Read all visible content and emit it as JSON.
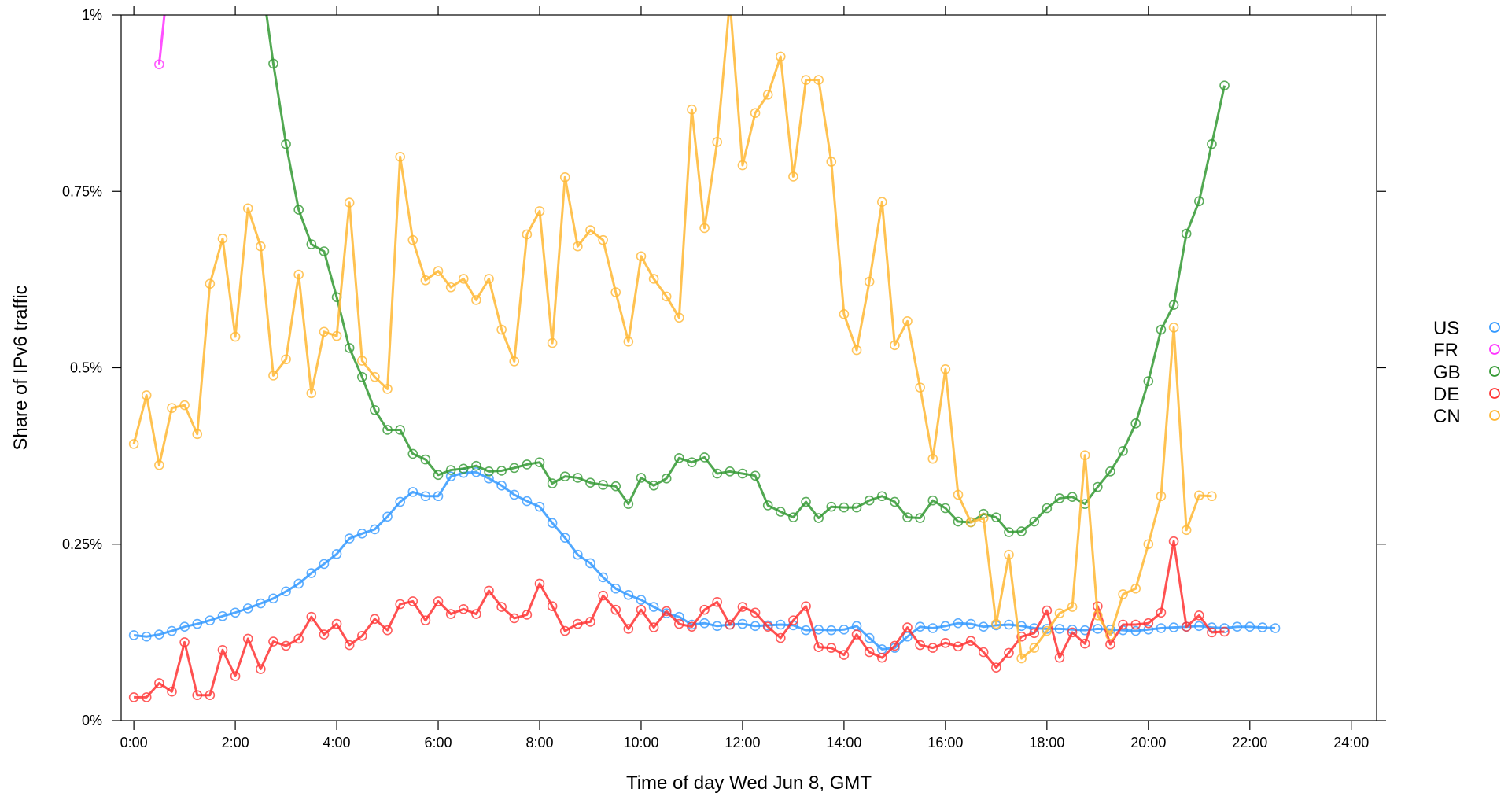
{
  "chart_data": {
    "type": "line",
    "title": "",
    "xlabel": "Time of day Wed Jun 8, GMT",
    "ylabel": "Share of IPv6 traffic",
    "xlim": [
      -0.25,
      24.5
    ],
    "ylim": [
      0,
      1
    ],
    "x_ticks": [
      0,
      2,
      4,
      6,
      8,
      10,
      12,
      14,
      16,
      18,
      20,
      22,
      24
    ],
    "x_tick_labels": [
      "0:00",
      "2:00",
      "4:00",
      "6:00",
      "8:00",
      "10:00",
      "12:00",
      "14:00",
      "16:00",
      "18:00",
      "20:00",
      "22:00",
      "24:00"
    ],
    "y_ticks": [
      0,
      0.25,
      0.5,
      0.75,
      1
    ],
    "y_tick_labels": [
      "0%",
      "0.25%",
      "0.5%",
      "0.75%",
      "1%"
    ],
    "legend_position": "right",
    "grid": false,
    "x_step_hours": 0.25,
    "series": [
      {
        "name": "US",
        "color": "#3399ff",
        "values": [
          0.121,
          0.119,
          0.122,
          0.127,
          0.133,
          0.137,
          0.142,
          0.148,
          0.153,
          0.159,
          0.166,
          0.173,
          0.183,
          0.194,
          0.209,
          0.222,
          0.236,
          0.258,
          0.265,
          0.271,
          0.289,
          0.31,
          0.324,
          0.318,
          0.318,
          0.346,
          0.351,
          0.352,
          0.343,
          0.333,
          0.32,
          0.311,
          0.303,
          0.28,
          0.259,
          0.235,
          0.223,
          0.203,
          0.187,
          0.178,
          0.171,
          0.161,
          0.152,
          0.147,
          0.136,
          0.138,
          0.134,
          0.136,
          0.137,
          0.134,
          0.135,
          0.136,
          0.135,
          0.128,
          0.129,
          0.128,
          0.129,
          0.134,
          0.117,
          0.101,
          0.103,
          0.119,
          0.133,
          0.131,
          0.134,
          0.138,
          0.137,
          0.133,
          0.135,
          0.136,
          0.134,
          0.131,
          0.13,
          0.13,
          0.129,
          0.128,
          0.13,
          0.129,
          0.128,
          0.127,
          0.129,
          0.131,
          0.132,
          0.133,
          0.134,
          0.132,
          0.131,
          0.133,
          0.133,
          0.132,
          0.131
        ]
      },
      {
        "name": "FR",
        "color": "#ff33ff",
        "values": [
          null,
          null,
          0.93,
          1.1
        ]
      },
      {
        "name": "GB",
        "color": "#339933",
        "values": [
          null,
          null,
          null,
          null,
          null,
          null,
          null,
          null,
          null,
          1.18,
          1.06,
          0.931,
          0.817,
          0.724,
          0.675,
          0.665,
          0.6,
          0.528,
          0.487,
          0.44,
          0.412,
          0.412,
          0.378,
          0.37,
          0.348,
          0.355,
          0.357,
          0.361,
          0.353,
          0.354,
          0.358,
          0.363,
          0.366,
          0.336,
          0.346,
          0.344,
          0.337,
          0.334,
          0.332,
          0.307,
          0.344,
          0.333,
          0.343,
          0.372,
          0.366,
          0.373,
          0.35,
          0.353,
          0.35,
          0.347,
          0.305,
          0.296,
          0.288,
          0.31,
          0.287,
          0.303,
          0.302,
          0.302,
          0.312,
          0.318,
          0.31,
          0.288,
          0.287,
          0.312,
          0.301,
          0.282,
          0.281,
          0.293,
          0.288,
          0.267,
          0.268,
          0.282,
          0.301,
          0.315,
          0.317,
          0.307,
          0.331,
          0.353,
          0.382,
          0.421,
          0.481,
          0.554,
          0.589,
          0.69,
          0.736,
          0.817,
          0.9
        ]
      },
      {
        "name": "DE",
        "color": "#ff3333",
        "values": [
          0.033,
          0.033,
          0.053,
          0.041,
          0.111,
          0.036,
          0.036,
          0.1,
          0.063,
          0.116,
          0.073,
          0.112,
          0.106,
          0.116,
          0.147,
          0.122,
          0.137,
          0.107,
          0.12,
          0.144,
          0.128,
          0.165,
          0.169,
          0.142,
          0.169,
          0.151,
          0.158,
          0.151,
          0.184,
          0.161,
          0.145,
          0.15,
          0.194,
          0.162,
          0.127,
          0.137,
          0.14,
          0.177,
          0.157,
          0.13,
          0.157,
          0.132,
          0.155,
          0.137,
          0.133,
          0.157,
          0.168,
          0.136,
          0.161,
          0.153,
          0.133,
          0.117,
          0.142,
          0.162,
          0.104,
          0.103,
          0.093,
          0.122,
          0.097,
          0.089,
          0.106,
          0.132,
          0.107,
          0.103,
          0.11,
          0.105,
          0.113,
          0.097,
          0.075,
          0.096,
          0.119,
          0.124,
          0.156,
          0.089,
          0.125,
          0.109,
          0.162,
          0.108,
          0.136,
          0.136,
          0.138,
          0.153,
          0.254,
          0.133,
          0.149,
          0.125,
          0.126
        ]
      },
      {
        "name": "CN",
        "color": "#ffb733",
        "values": [
          0.392,
          0.461,
          0.362,
          0.443,
          0.447,
          0.406,
          0.619,
          0.683,
          0.544,
          0.726,
          0.672,
          0.489,
          0.512,
          0.632,
          0.464,
          0.551,
          0.545,
          0.734,
          0.51,
          0.487,
          0.47,
          0.799,
          0.681,
          0.624,
          0.637,
          0.614,
          0.626,
          0.596,
          0.626,
          0.554,
          0.509,
          0.689,
          0.722,
          0.535,
          0.77,
          0.672,
          0.695,
          0.681,
          0.607,
          0.537,
          0.658,
          0.626,
          0.601,
          0.571,
          0.866,
          0.698,
          0.82,
          1.02,
          0.787,
          0.861,
          0.887,
          0.941,
          0.771,
          0.908,
          0.908,
          0.792,
          0.576,
          0.525,
          0.622,
          0.735,
          0.532,
          0.566,
          0.472,
          0.371,
          0.498,
          0.32,
          0.281,
          0.287,
          0.137,
          0.235,
          0.088,
          0.103,
          0.127,
          0.152,
          0.161,
          0.376,
          0.149,
          0.121,
          0.179,
          0.187,
          0.25,
          0.318,
          0.557,
          0.27,
          0.319,
          0.318
        ]
      }
    ]
  }
}
